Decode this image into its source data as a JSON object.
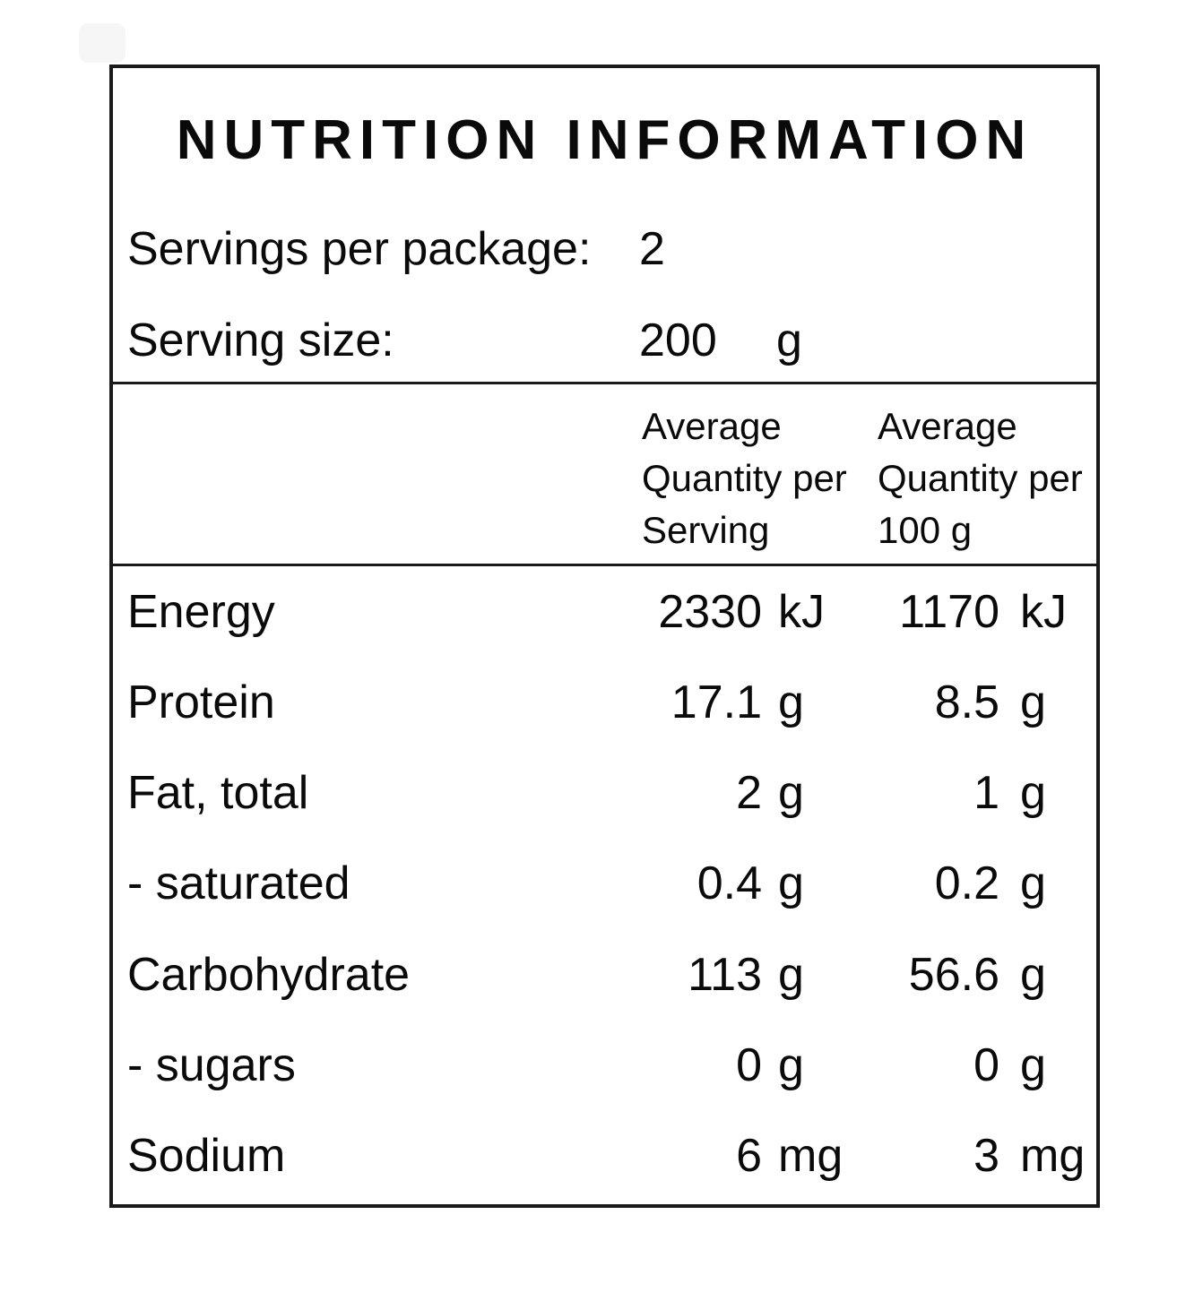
{
  "colors": {
    "text": "#0a0a0a",
    "border": "#1a1a1a",
    "background": "#ffffff"
  },
  "label": {
    "title": "NUTRITION INFORMATION",
    "servings_per_package": {
      "label": "Servings per package:",
      "value": "2"
    },
    "serving_size": {
      "label": "Serving size:",
      "value": "200",
      "unit": "g"
    },
    "columns": {
      "per_serving": {
        "line1": "Average",
        "line2": "Quantity per",
        "line3": "Serving"
      },
      "per_100g": {
        "line1": "Average",
        "line2": "Quantity per",
        "line3": "100 g"
      }
    },
    "rows": [
      {
        "nutrient": "Energy",
        "serving_value": "2330",
        "serving_unit": "kJ",
        "per100_value": "1170",
        "per100_unit": "kJ"
      },
      {
        "nutrient": "Protein",
        "serving_value": "17.1",
        "serving_unit": "g",
        "per100_value": "8.5",
        "per100_unit": "g"
      },
      {
        "nutrient": "Fat, total",
        "serving_value": "2",
        "serving_unit": "g",
        "per100_value": "1",
        "per100_unit": "g"
      },
      {
        "nutrient": "- saturated",
        "serving_value": "0.4",
        "serving_unit": "g",
        "per100_value": "0.2",
        "per100_unit": "g"
      },
      {
        "nutrient": "Carbohydrate",
        "serving_value": "113",
        "serving_unit": "g",
        "per100_value": "56.6",
        "per100_unit": "g"
      },
      {
        "nutrient": "- sugars",
        "serving_value": "0",
        "serving_unit": "g",
        "per100_value": "0",
        "per100_unit": "g"
      },
      {
        "nutrient": "Sodium",
        "serving_value": "6",
        "serving_unit": "mg",
        "per100_value": "3",
        "per100_unit": "mg"
      }
    ]
  }
}
